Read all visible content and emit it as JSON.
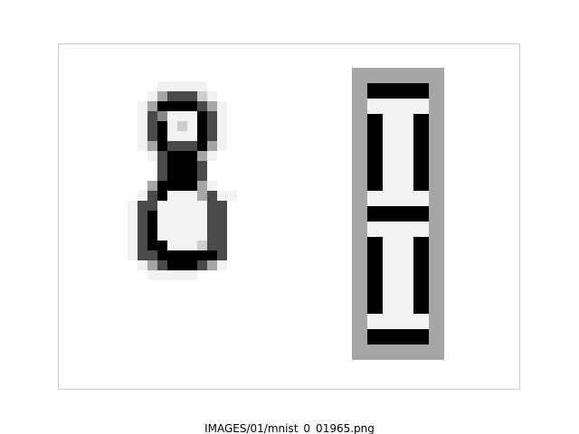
{
  "caption": "IMAGES/01/mnist_0_01965.png",
  "images": {
    "handwritten_digit": {
      "description_icon": "handwritten-8-icon",
      "rows": [
        "....00000...",
        "...0233310..",
        "..024444320.",
        "..035000430.",
        "..034010430.",
        "..034000430.",
        "..024333420.",
        "...0344420..",
        "....34443...",
        "....34443...",
        "...2444420..",
        "..0340002300",
        ".0330000033.",
        ".0340000033.",
        ".0340000033.",
        ".0340000033.",
        ".0344000133.",
        ".0334444443.",
        "..023444320.",
        "...00000...."
      ]
    },
    "seven_segment": {
      "description_icon": "seven-segment-8-icon",
      "rows": [
        "222222",
        "244442",
        "200002",
        "240042",
        "240042",
        "240042",
        "240042",
        "240042",
        "200002",
        "244442",
        "200002",
        "240042",
        "240042",
        "240042",
        "240042",
        "240042",
        "200002",
        "244442",
        "222222"
      ]
    }
  }
}
